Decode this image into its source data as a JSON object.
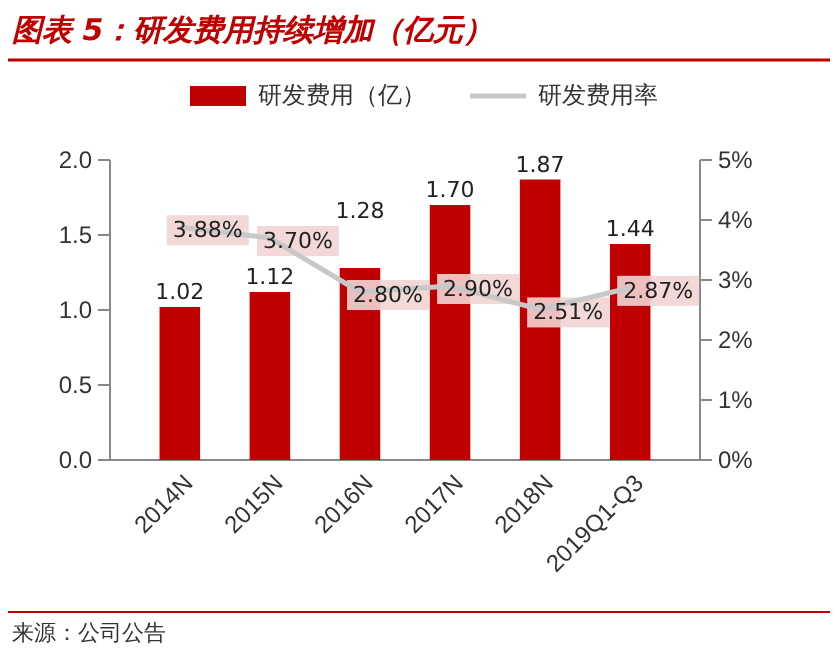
{
  "chart_data": {
    "type": "bar",
    "title": "图表 5：研发费用持续增加（亿元）",
    "categories": [
      "2014N",
      "2015N",
      "2016N",
      "2017N",
      "2018N",
      "2019Q1-Q3"
    ],
    "series": [
      {
        "name": "研发费用（亿）",
        "color": "#c00000",
        "values": [
          1.02,
          1.12,
          1.28,
          1.7,
          1.87,
          1.44
        ],
        "value_labels": [
          "1.02",
          "1.12",
          "1.28",
          "1.70",
          "1.87",
          "1.44"
        ]
      },
      {
        "name": "研发费用率",
        "type": "line",
        "axis": "y2",
        "color": "#c8c8c8",
        "values": [
          3.88,
          3.7,
          2.8,
          2.9,
          2.51,
          2.87
        ],
        "value_labels": [
          "3.88%",
          "3.70%",
          "2.80%",
          "2.90%",
          "2.51%",
          "2.87%"
        ]
      }
    ],
    "ylim": [
      0,
      2
    ],
    "yticks": [
      {
        "value": 0,
        "label": "0.0"
      },
      {
        "value": 0.5,
        "label": "0.5"
      },
      {
        "value": 1,
        "label": "1.0"
      },
      {
        "value": 1.5,
        "label": "1.5"
      },
      {
        "value": 2,
        "label": "2.0"
      }
    ],
    "y2lim": [
      0,
      5
    ],
    "y2ticks": [
      {
        "value": 0,
        "label": "0%"
      },
      {
        "value": 1,
        "label": "1%"
      },
      {
        "value": 2,
        "label": "2%"
      },
      {
        "value": 3,
        "label": "3%"
      },
      {
        "value": 4,
        "label": "4%"
      },
      {
        "value": 5,
        "label": "5%"
      }
    ],
    "legend": "top",
    "grid": false,
    "marker": "none",
    "annotations": [
      "来源：公司公告"
    ]
  }
}
